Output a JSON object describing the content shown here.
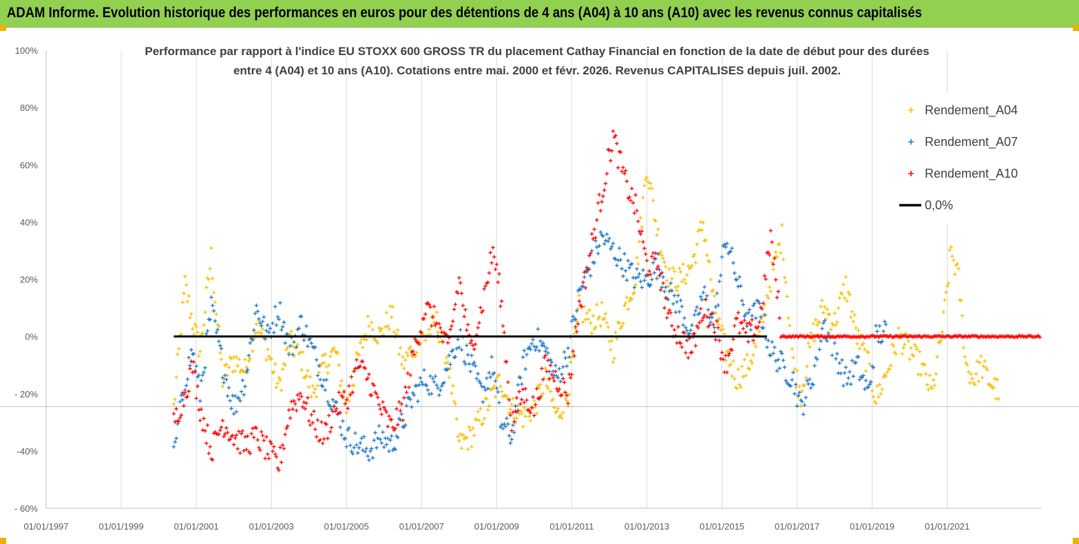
{
  "banner": {
    "title": "ADAM Informe. Evolution historique des performances en euros pour des détentions de 4 ans (A04) à 10 ans (A10) avec les revenus connus capitalisés",
    "color": "#92d050"
  },
  "chart_data": {
    "type": "scatter",
    "title_line1": "Performance par rapport à l'indice EU STOXX 600 GROSS TR  du placement Cathay Financial  en fonction de la date de début pour des durées",
    "title_line2": "entre 4 (A04) et 10 ans (A10).  Cotations entre mai. 2000 et févr. 2026. Revenus CAPITALISES depuis juil. 2002.",
    "xlabel": "",
    "ylabel": "",
    "x_ticks": [
      "01/01/1997",
      "01/01/1999",
      "01/01/2001",
      "01/01/2003",
      "01/01/2005",
      "01/01/2007",
      "01/01/2009",
      "01/01/2011",
      "01/01/2013",
      "01/01/2015",
      "01/01/2017",
      "01/01/2019",
      "01/01/2021"
    ],
    "x_range": [
      1997.0,
      2023.5
    ],
    "y_ticks": [
      "100%",
      "80%",
      "60%",
      "40%",
      "20%",
      "0%",
      "- 20%",
      "-40%",
      "- 60%"
    ],
    "y_tick_values": [
      100,
      80,
      60,
      40,
      20,
      0,
      -20,
      -40,
      -60
    ],
    "ylim": [
      -60,
      100
    ],
    "grid": "vertical",
    "legend_position": "top-right",
    "legend": [
      {
        "key": "a04",
        "label": "Rendement_A04",
        "color": "#f5c000",
        "marker": "+"
      },
      {
        "key": "a07",
        "label": "Rendement_A07",
        "color": "#1f77c4",
        "marker": "+"
      },
      {
        "key": "a10",
        "label": "Rendement_A10",
        "color": "#ff0000",
        "marker": "+"
      },
      {
        "key": "zero",
        "label": "0,0%",
        "color": "#000000",
        "marker": "line"
      }
    ],
    "series": [
      {
        "name": "Rendement_A04",
        "color": "#f5c000",
        "points": [
          [
            2000.4,
            -25
          ],
          [
            2000.7,
            18
          ],
          [
            2000.9,
            5
          ],
          [
            2001.1,
            -5
          ],
          [
            2001.4,
            28
          ],
          [
            2001.7,
            -15
          ],
          [
            2002.0,
            -8
          ],
          [
            2002.3,
            -12
          ],
          [
            2002.6,
            5
          ],
          [
            2002.9,
            -5
          ],
          [
            2003.2,
            -18
          ],
          [
            2003.5,
            -2
          ],
          [
            2003.8,
            -8
          ],
          [
            2004.1,
            -20
          ],
          [
            2004.4,
            -10
          ],
          [
            2004.7,
            -5
          ],
          [
            2005.0,
            -25
          ],
          [
            2005.3,
            -8
          ],
          [
            2005.6,
            5
          ],
          [
            2005.9,
            0
          ],
          [
            2006.2,
            8
          ],
          [
            2006.5,
            -10
          ],
          [
            2006.8,
            -3
          ],
          [
            2007.1,
            0
          ],
          [
            2007.4,
            5
          ],
          [
            2007.7,
            -8
          ],
          [
            2008.0,
            -38
          ],
          [
            2008.3,
            -35
          ],
          [
            2008.6,
            -28
          ],
          [
            2008.9,
            -20
          ],
          [
            2009.1,
            -15
          ],
          [
            2009.4,
            -25
          ],
          [
            2009.7,
            -28
          ],
          [
            2010.0,
            -25
          ],
          [
            2010.3,
            -15
          ],
          [
            2010.6,
            -28
          ],
          [
            2010.9,
            -20
          ],
          [
            2011.2,
            10
          ],
          [
            2011.5,
            5
          ],
          [
            2011.8,
            8
          ],
          [
            2012.1,
            -5
          ],
          [
            2012.4,
            10
          ],
          [
            2012.7,
            20
          ],
          [
            2013.0,
            60
          ],
          [
            2013.3,
            35
          ],
          [
            2013.6,
            20
          ],
          [
            2013.9,
            20
          ],
          [
            2014.2,
            25
          ],
          [
            2014.5,
            40
          ],
          [
            2014.8,
            10
          ],
          [
            2015.1,
            -5
          ],
          [
            2015.4,
            -15
          ],
          [
            2015.7,
            -10
          ],
          [
            2016.0,
            0
          ],
          [
            2016.3,
            20
          ],
          [
            2016.6,
            35
          ],
          [
            2016.9,
            -10
          ],
          [
            2017.1,
            -20
          ],
          [
            2017.4,
            0
          ],
          [
            2017.7,
            10
          ],
          [
            2018.0,
            5
          ],
          [
            2018.3,
            18
          ],
          [
            2018.6,
            0
          ],
          [
            2018.9,
            -10
          ],
          [
            2019.1,
            -22
          ],
          [
            2019.4,
            -12
          ],
          [
            2019.7,
            0
          ],
          [
            2020.0,
            -5
          ],
          [
            2020.3,
            -10
          ],
          [
            2020.6,
            -20
          ],
          [
            2020.9,
            5
          ],
          [
            2021.1,
            30
          ],
          [
            2021.3,
            20
          ],
          [
            2021.5,
            -10
          ],
          [
            2021.7,
            -15
          ],
          [
            2021.9,
            -10
          ],
          [
            2022.1,
            -15
          ],
          [
            2022.4,
            -20
          ]
        ]
      },
      {
        "name": "Rendement_A07",
        "color": "#1f77c4",
        "points": [
          [
            2000.4,
            -42
          ],
          [
            2000.7,
            -15
          ],
          [
            2000.9,
            -5
          ],
          [
            2001.1,
            -20
          ],
          [
            2001.4,
            10
          ],
          [
            2001.7,
            -10
          ],
          [
            2002.0,
            -25
          ],
          [
            2002.3,
            -15
          ],
          [
            2002.6,
            10
          ],
          [
            2002.9,
            0
          ],
          [
            2003.2,
            10
          ],
          [
            2003.5,
            -5
          ],
          [
            2003.8,
            5
          ],
          [
            2004.1,
            -5
          ],
          [
            2004.4,
            -15
          ],
          [
            2004.7,
            -25
          ],
          [
            2005.0,
            -35
          ],
          [
            2005.3,
            -38
          ],
          [
            2005.6,
            -40
          ],
          [
            2005.9,
            -35
          ],
          [
            2006.2,
            -38
          ],
          [
            2006.5,
            -30
          ],
          [
            2006.8,
            -20
          ],
          [
            2007.1,
            -15
          ],
          [
            2007.4,
            -18
          ],
          [
            2007.7,
            -10
          ],
          [
            2008.0,
            0
          ],
          [
            2008.3,
            -10
          ],
          [
            2008.6,
            -20
          ],
          [
            2008.9,
            -10
          ],
          [
            2009.1,
            -30
          ],
          [
            2009.4,
            -35
          ],
          [
            2009.7,
            -10
          ],
          [
            2010.0,
            0
          ],
          [
            2010.3,
            -5
          ],
          [
            2010.6,
            -15
          ],
          [
            2010.9,
            -5
          ],
          [
            2011.2,
            15
          ],
          [
            2011.5,
            25
          ],
          [
            2011.8,
            35
          ],
          [
            2012.1,
            30
          ],
          [
            2012.4,
            25
          ],
          [
            2012.7,
            20
          ],
          [
            2013.0,
            20
          ],
          [
            2013.3,
            25
          ],
          [
            2013.6,
            15
          ],
          [
            2013.9,
            10
          ],
          [
            2014.2,
            0
          ],
          [
            2014.5,
            15
          ],
          [
            2014.8,
            5
          ],
          [
            2015.1,
            35
          ],
          [
            2015.4,
            20
          ],
          [
            2015.7,
            5
          ],
          [
            2016.0,
            10
          ],
          [
            2016.3,
            -5
          ],
          [
            2016.6,
            -10
          ],
          [
            2016.9,
            -15
          ],
          [
            2017.1,
            -25
          ],
          [
            2017.4,
            -15
          ],
          [
            2017.7,
            5
          ],
          [
            2018.0,
            -5
          ],
          [
            2018.3,
            -15
          ],
          [
            2018.6,
            -10
          ],
          [
            2018.9,
            -20
          ],
          [
            2019.1,
            0
          ],
          [
            2019.4,
            2
          ]
        ]
      },
      {
        "name": "Rendement_A10",
        "color": "#ff0000",
        "points": [
          [
            2000.4,
            -30
          ],
          [
            2000.7,
            -20
          ],
          [
            2000.9,
            -10
          ],
          [
            2001.1,
            -25
          ],
          [
            2001.4,
            -40
          ],
          [
            2001.7,
            -30
          ],
          [
            2002.0,
            -35
          ],
          [
            2002.3,
            -38
          ],
          [
            2002.6,
            -35
          ],
          [
            2002.9,
            -40
          ],
          [
            2003.2,
            -45
          ],
          [
            2003.5,
            -25
          ],
          [
            2003.8,
            -20
          ],
          [
            2004.1,
            -30
          ],
          [
            2004.4,
            -35
          ],
          [
            2004.7,
            -25
          ],
          [
            2005.0,
            -22
          ],
          [
            2005.3,
            -10
          ],
          [
            2005.6,
            -15
          ],
          [
            2005.9,
            -25
          ],
          [
            2006.2,
            -32
          ],
          [
            2006.5,
            -25
          ],
          [
            2006.8,
            -5
          ],
          [
            2007.1,
            10
          ],
          [
            2007.4,
            5
          ],
          [
            2007.7,
            -5
          ],
          [
            2008.0,
            20
          ],
          [
            2008.3,
            -5
          ],
          [
            2008.6,
            10
          ],
          [
            2008.9,
            30
          ],
          [
            2009.1,
            15
          ],
          [
            2009.4,
            -30
          ],
          [
            2009.7,
            -20
          ],
          [
            2010.0,
            -25
          ],
          [
            2010.3,
            -10
          ],
          [
            2010.6,
            -15
          ],
          [
            2010.9,
            -20
          ],
          [
            2011.2,
            10
          ],
          [
            2011.5,
            30
          ],
          [
            2011.8,
            50
          ],
          [
            2012.1,
            70
          ],
          [
            2012.4,
            55
          ],
          [
            2012.7,
            45
          ],
          [
            2013.0,
            25
          ],
          [
            2013.3,
            25
          ],
          [
            2013.6,
            5
          ],
          [
            2013.9,
            0
          ],
          [
            2014.2,
            -5
          ],
          [
            2014.5,
            10
          ],
          [
            2014.8,
            5
          ],
          [
            2015.1,
            -10
          ],
          [
            2015.4,
            5
          ],
          [
            2015.7,
            0
          ],
          [
            2016.0,
            5
          ],
          [
            2016.3,
            35
          ],
          [
            2016.6,
            0
          ],
          [
            2017.5,
            0
          ],
          [
            2018.5,
            0
          ],
          [
            2019.5,
            0
          ],
          [
            2020.5,
            0
          ],
          [
            2021.5,
            0
          ],
          [
            2022.5,
            0
          ],
          [
            2023.5,
            0
          ]
        ]
      },
      {
        "name": "0,0%",
        "color": "#000000",
        "line": [
          [
            2000.4,
            0
          ],
          [
            2016.2,
            0
          ]
        ]
      }
    ]
  }
}
